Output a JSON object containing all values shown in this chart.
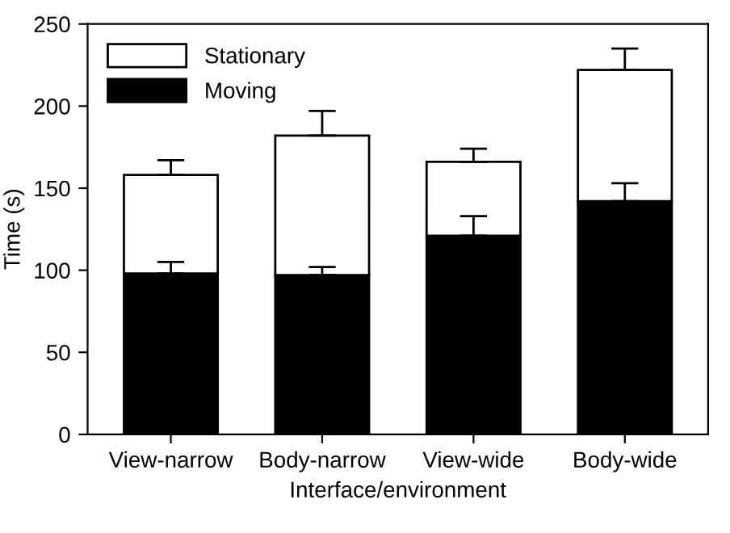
{
  "chart_data": {
    "type": "bar",
    "stacked": true,
    "xlabel": "Interface/environment",
    "ylabel": "Time (s)",
    "categories": [
      "View-narrow",
      "Body-narrow",
      "View-wide",
      "Body-wide"
    ],
    "series": [
      {
        "name": "Moving",
        "color": "#000000",
        "values": [
          98,
          97,
          121,
          142
        ],
        "errors": [
          [
            98,
            105
          ],
          [
            97,
            102
          ],
          [
            121,
            133
          ],
          [
            142,
            153
          ]
        ]
      },
      {
        "name": "Stationary",
        "color": "#ffffff",
        "values": [
          60,
          85,
          45,
          80
        ],
        "errors": [
          [
            158,
            167
          ],
          [
            182,
            197
          ],
          [
            166,
            174
          ],
          [
            222,
            235
          ]
        ]
      }
    ],
    "ylim": [
      0,
      250
    ],
    "yticks": [
      0,
      50,
      100,
      150,
      200,
      250
    ],
    "legend": "top left",
    "grid": false
  }
}
